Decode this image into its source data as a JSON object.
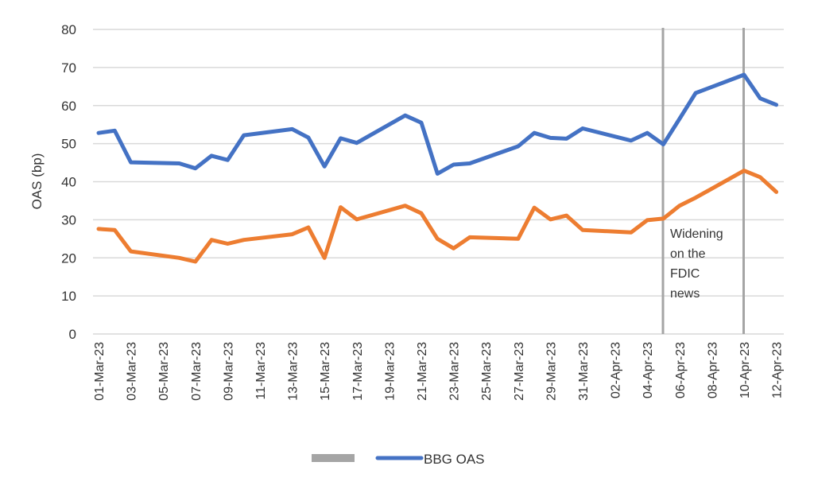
{
  "chart_data": {
    "type": "line",
    "title": "",
    "xlabel": "",
    "ylabel": "OAS (bp)",
    "ylim": [
      0,
      80
    ],
    "yticks": [
      0,
      10,
      20,
      30,
      40,
      50,
      60,
      70,
      80
    ],
    "grid": true,
    "legend_position": "bottom",
    "xlim": [
      "2023-03-01",
      "2023-04-12"
    ],
    "xtick_labels": [
      "01-Mar-23",
      "03-Mar-23",
      "05-Mar-23",
      "07-Mar-23",
      "09-Mar-23",
      "11-Mar-23",
      "13-Mar-23",
      "15-Mar-23",
      "17-Mar-23",
      "19-Mar-23",
      "21-Mar-23",
      "23-Mar-23",
      "25-Mar-23",
      "27-Mar-23",
      "29-Mar-23",
      "31-Mar-23",
      "02-Apr-23",
      "04-Apr-23",
      "06-Apr-23",
      "08-Apr-23",
      "10-Apr-23",
      "12-Apr-23"
    ],
    "x": [
      "2023-03-01",
      "2023-03-02",
      "2023-03-03",
      "2023-03-06",
      "2023-03-07",
      "2023-03-08",
      "2023-03-09",
      "2023-03-10",
      "2023-03-13",
      "2023-03-14",
      "2023-03-15",
      "2023-03-16",
      "2023-03-17",
      "2023-03-20",
      "2023-03-21",
      "2023-03-22",
      "2023-03-23",
      "2023-03-24",
      "2023-03-27",
      "2023-03-28",
      "2023-03-29",
      "2023-03-30",
      "2023-03-31",
      "2023-04-03",
      "2023-04-04",
      "2023-04-05",
      "2023-04-06",
      "2023-04-07",
      "2023-04-10",
      "2023-04-11",
      "2023-04-12"
    ],
    "series": [
      {
        "name": "BBG OAS",
        "color": "#4472C4",
        "values": [
          52.8,
          53.4,
          45.1,
          44.8,
          43.5,
          46.8,
          45.7,
          52.2,
          53.8,
          51.6,
          44.0,
          51.4,
          50.2,
          57.4,
          55.5,
          42.1,
          44.5,
          44.8,
          49.3,
          52.8,
          51.5,
          51.3,
          54.0,
          50.8,
          52.8,
          49.8,
          56.5,
          63.3,
          68.1,
          61.9,
          60.2
        ]
      },
      {
        "color": "#ED7D31",
        "values": [
          27.6,
          27.3,
          21.7,
          20.0,
          19.0,
          24.7,
          23.7,
          24.7,
          26.2,
          28.0,
          20.0,
          33.3,
          30.1,
          33.7,
          31.7,
          25.0,
          22.5,
          25.4,
          25.0,
          33.2,
          30.1,
          31.1,
          27.3,
          26.7,
          29.9,
          30.3,
          33.7,
          35.8,
          42.9,
          41.2,
          37.3
        ]
      }
    ],
    "vertical_markers": [
      {
        "x": "2023-04-05",
        "color": "#A5A5A5"
      },
      {
        "x": "2023-04-10",
        "color": "#A5A5A5"
      }
    ],
    "annotation": "Widening on the FDIC news",
    "annotation_lines": [
      "Widening",
      "on the",
      "FDIC",
      "news"
    ],
    "legend": [
      {
        "label": "",
        "color": "#A5A5A5"
      },
      {
        "label": "BBG OAS",
        "color": "#4472C4"
      }
    ]
  }
}
